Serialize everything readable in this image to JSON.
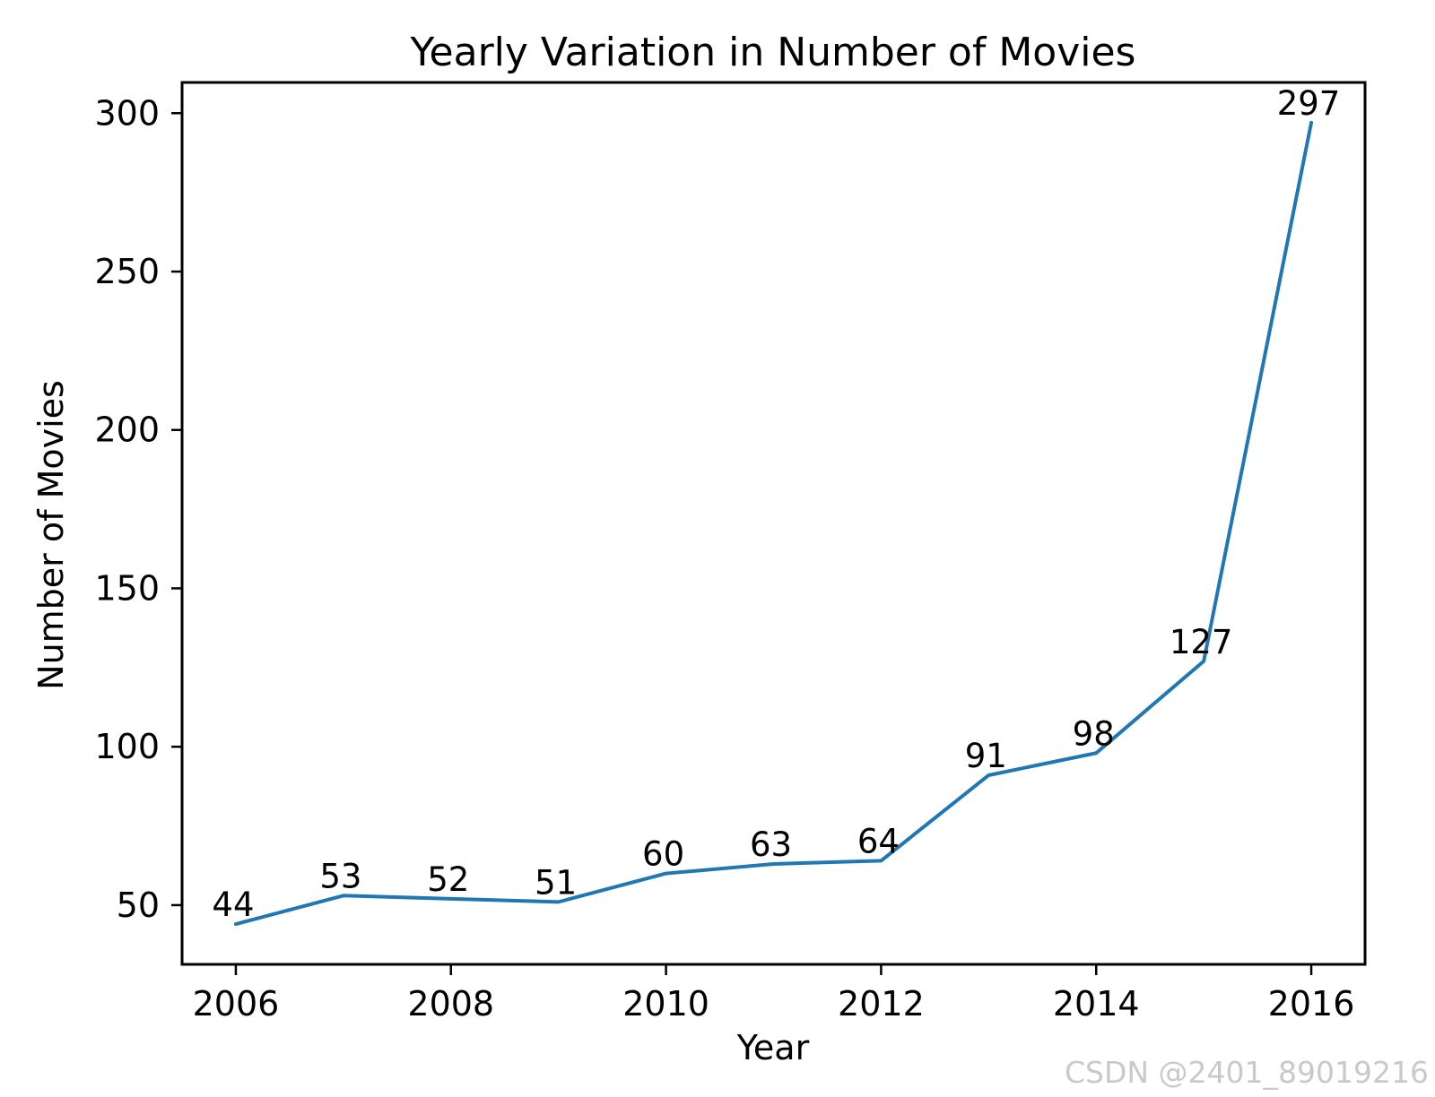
{
  "chart_data": {
    "type": "line",
    "title": "Yearly Variation in Number of Movies",
    "xlabel": "Year",
    "ylabel": "Number of Movies",
    "x": [
      2006,
      2007,
      2008,
      2009,
      2010,
      2011,
      2012,
      2013,
      2014,
      2015,
      2016
    ],
    "values": [
      44,
      53,
      52,
      51,
      60,
      63,
      64,
      91,
      98,
      127,
      297
    ],
    "x_ticks": [
      2006,
      2008,
      2010,
      2012,
      2014,
      2016
    ],
    "y_ticks": [
      50,
      100,
      150,
      200,
      250,
      300
    ],
    "xlim": [
      2005.5,
      2016.5
    ],
    "ylim": [
      31.3,
      309.7
    ],
    "line_color": "#1f77b4",
    "axis_color": "#000000",
    "grid": false,
    "legend": "none",
    "point_labels_shown": true
  },
  "watermark": {
    "text": "CSDN @2401_89019216",
    "color": "#c9c9c9"
  }
}
